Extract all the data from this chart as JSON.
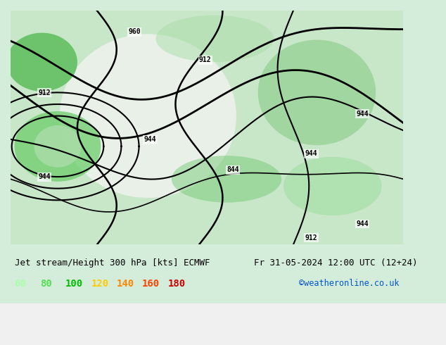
{
  "title_left": "Jet stream/Height 300 hPa [kts] ECMWF",
  "title_right": "Fr 31-05-2024 12:00 UTC (12+24)",
  "credit": "©weatheronline.co.uk",
  "legend_values": [
    "60",
    "80",
    "100",
    "120",
    "140",
    "160",
    "180"
  ],
  "legend_colors": [
    "#aaffaa",
    "#55dd55",
    "#00bb00",
    "#ffcc00",
    "#ff8800",
    "#ff4400",
    "#cc0000"
  ],
  "bg_color": "#f0f0f0",
  "map_bg": "#cceecc",
  "label_color": "#000000",
  "title_fontsize": 9,
  "legend_fontsize": 10,
  "credit_color": "#0055cc"
}
